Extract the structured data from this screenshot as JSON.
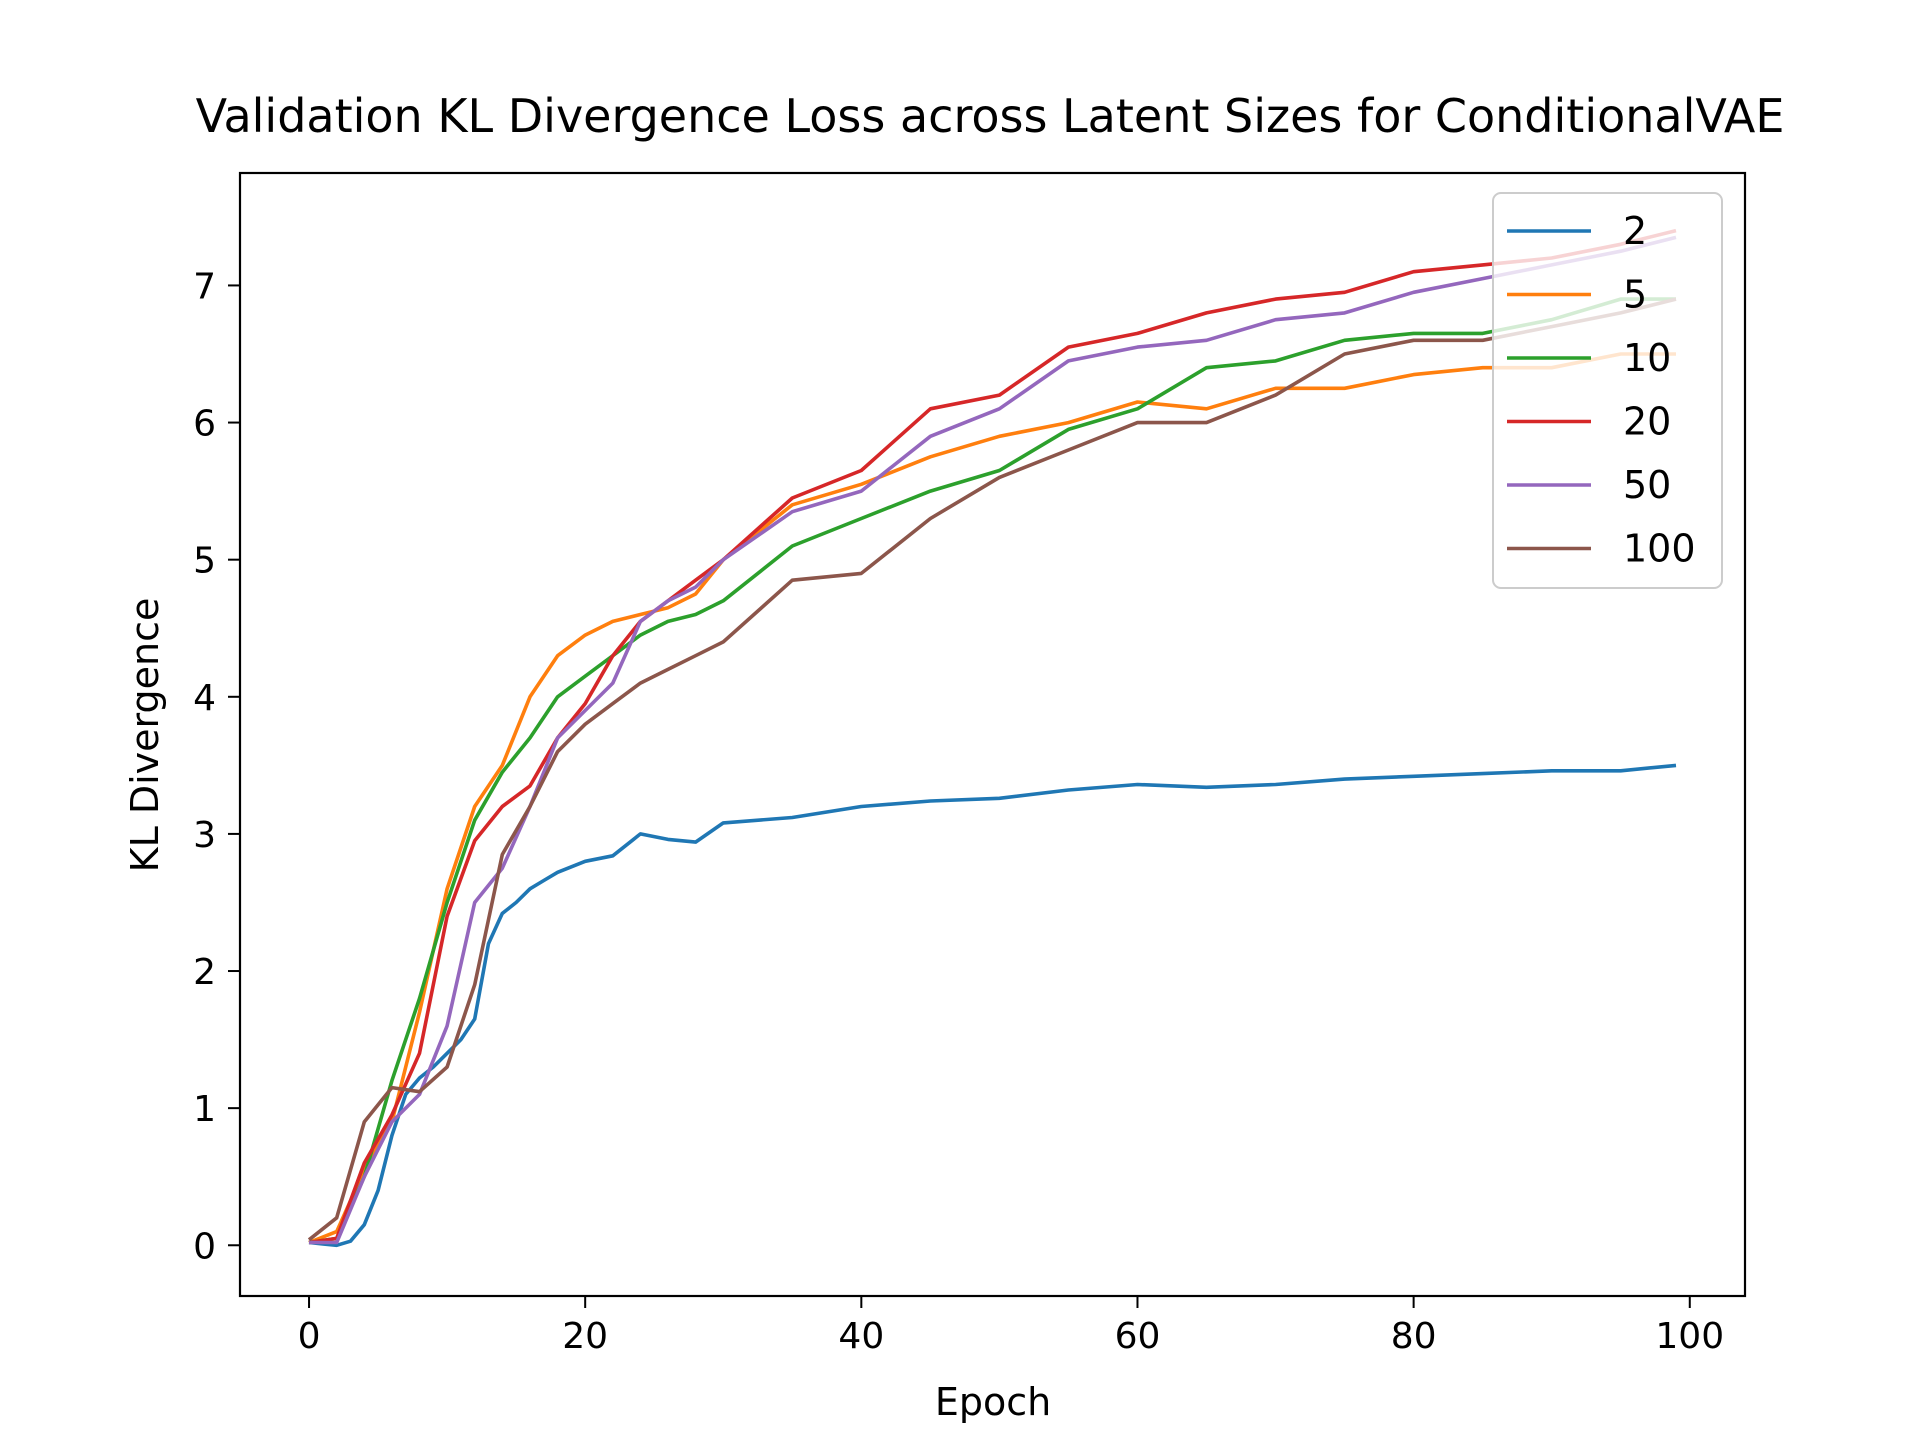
{
  "chart_data": {
    "type": "line",
    "title": "Validation KL Divergence Loss across Latent Sizes for ConditionalVAE",
    "xlabel": "Epoch",
    "ylabel": "KL Divergence",
    "xlim": [
      -5,
      104
    ],
    "ylim": [
      -0.37,
      7.82
    ],
    "xticks": [
      0,
      20,
      40,
      60,
      80,
      100
    ],
    "yticks": [
      0,
      1,
      2,
      3,
      4,
      5,
      6,
      7
    ],
    "grid": false,
    "legend_position": "upper right",
    "series": [
      {
        "name": "2",
        "color": "#1f77b4",
        "x": [
          0,
          1,
          2,
          3,
          4,
          5,
          6,
          7,
          8,
          9,
          10,
          11,
          12,
          13,
          14,
          15,
          16,
          17,
          18,
          19,
          20,
          22,
          24,
          26,
          28,
          30,
          35,
          40,
          45,
          50,
          55,
          60,
          65,
          70,
          75,
          80,
          85,
          90,
          95,
          99
        ],
        "y": [
          0.02,
          0.01,
          0.0,
          0.03,
          0.15,
          0.4,
          0.8,
          1.1,
          1.22,
          1.3,
          1.4,
          1.5,
          1.65,
          2.2,
          2.42,
          2.5,
          2.6,
          2.66,
          2.72,
          2.76,
          2.8,
          2.84,
          3.0,
          2.96,
          2.94,
          3.08,
          3.12,
          3.2,
          3.24,
          3.26,
          3.32,
          3.36,
          3.34,
          3.36,
          3.4,
          3.42,
          3.44,
          3.46,
          3.46,
          3.5
        ]
      },
      {
        "name": "5",
        "color": "#ff7f0e",
        "x": [
          0,
          2,
          4,
          6,
          8,
          10,
          12,
          14,
          16,
          18,
          20,
          22,
          24,
          26,
          28,
          30,
          35,
          40,
          45,
          50,
          55,
          60,
          65,
          70,
          75,
          80,
          85,
          90,
          95,
          99
        ],
        "y": [
          0.02,
          0.1,
          0.55,
          0.9,
          1.7,
          2.6,
          3.2,
          3.5,
          4.0,
          4.3,
          4.45,
          4.55,
          4.6,
          4.65,
          4.75,
          5.0,
          5.4,
          5.55,
          5.75,
          5.9,
          6.0,
          6.15,
          6.1,
          6.25,
          6.25,
          6.35,
          6.4,
          6.4,
          6.5,
          6.5
        ]
      },
      {
        "name": "10",
        "color": "#2ca02c",
        "x": [
          0,
          2,
          4,
          6,
          8,
          10,
          12,
          14,
          16,
          18,
          20,
          22,
          24,
          26,
          28,
          30,
          35,
          40,
          45,
          50,
          55,
          60,
          65,
          70,
          75,
          80,
          85,
          90,
          95,
          99
        ],
        "y": [
          0.02,
          0.05,
          0.5,
          1.2,
          1.8,
          2.5,
          3.1,
          3.45,
          3.7,
          4.0,
          4.15,
          4.3,
          4.45,
          4.55,
          4.6,
          4.7,
          5.1,
          5.3,
          5.5,
          5.65,
          5.95,
          6.1,
          6.4,
          6.45,
          6.6,
          6.65,
          6.65,
          6.75,
          6.9,
          6.9
        ]
      },
      {
        "name": "20",
        "color": "#d62728",
        "x": [
          0,
          2,
          4,
          6,
          8,
          10,
          12,
          14,
          16,
          18,
          20,
          22,
          24,
          26,
          28,
          30,
          35,
          40,
          45,
          50,
          55,
          60,
          65,
          70,
          75,
          80,
          85,
          90,
          95,
          99
        ],
        "y": [
          0.02,
          0.05,
          0.6,
          0.95,
          1.4,
          2.4,
          2.95,
          3.2,
          3.35,
          3.7,
          3.95,
          4.3,
          4.55,
          4.7,
          4.85,
          5.0,
          5.45,
          5.65,
          6.1,
          6.2,
          6.55,
          6.65,
          6.8,
          6.9,
          6.95,
          7.1,
          7.15,
          7.2,
          7.3,
          7.4
        ]
      },
      {
        "name": "50",
        "color": "#9467bd",
        "x": [
          0,
          2,
          4,
          6,
          8,
          10,
          12,
          14,
          16,
          18,
          20,
          22,
          24,
          26,
          28,
          30,
          35,
          40,
          45,
          50,
          55,
          60,
          65,
          70,
          75,
          80,
          85,
          90,
          95,
          99
        ],
        "y": [
          0.02,
          0.02,
          0.5,
          0.9,
          1.1,
          1.6,
          2.5,
          2.75,
          3.2,
          3.7,
          3.9,
          4.1,
          4.55,
          4.7,
          4.8,
          5.0,
          5.35,
          5.5,
          5.9,
          6.1,
          6.45,
          6.55,
          6.6,
          6.75,
          6.8,
          6.95,
          7.05,
          7.15,
          7.25,
          7.35
        ]
      },
      {
        "name": "100",
        "color": "#8c564b",
        "x": [
          0,
          2,
          4,
          6,
          8,
          10,
          12,
          14,
          16,
          18,
          20,
          22,
          24,
          26,
          28,
          30,
          35,
          40,
          45,
          50,
          55,
          60,
          65,
          70,
          75,
          80,
          85,
          90,
          95,
          99
        ],
        "y": [
          0.04,
          0.2,
          0.9,
          1.15,
          1.12,
          1.3,
          1.9,
          2.85,
          3.2,
          3.6,
          3.8,
          3.95,
          4.1,
          4.2,
          4.3,
          4.4,
          4.85,
          4.9,
          5.3,
          5.6,
          5.8,
          6.0,
          6.0,
          6.2,
          6.5,
          6.6,
          6.6,
          6.7,
          6.8,
          6.9
        ]
      }
    ]
  }
}
